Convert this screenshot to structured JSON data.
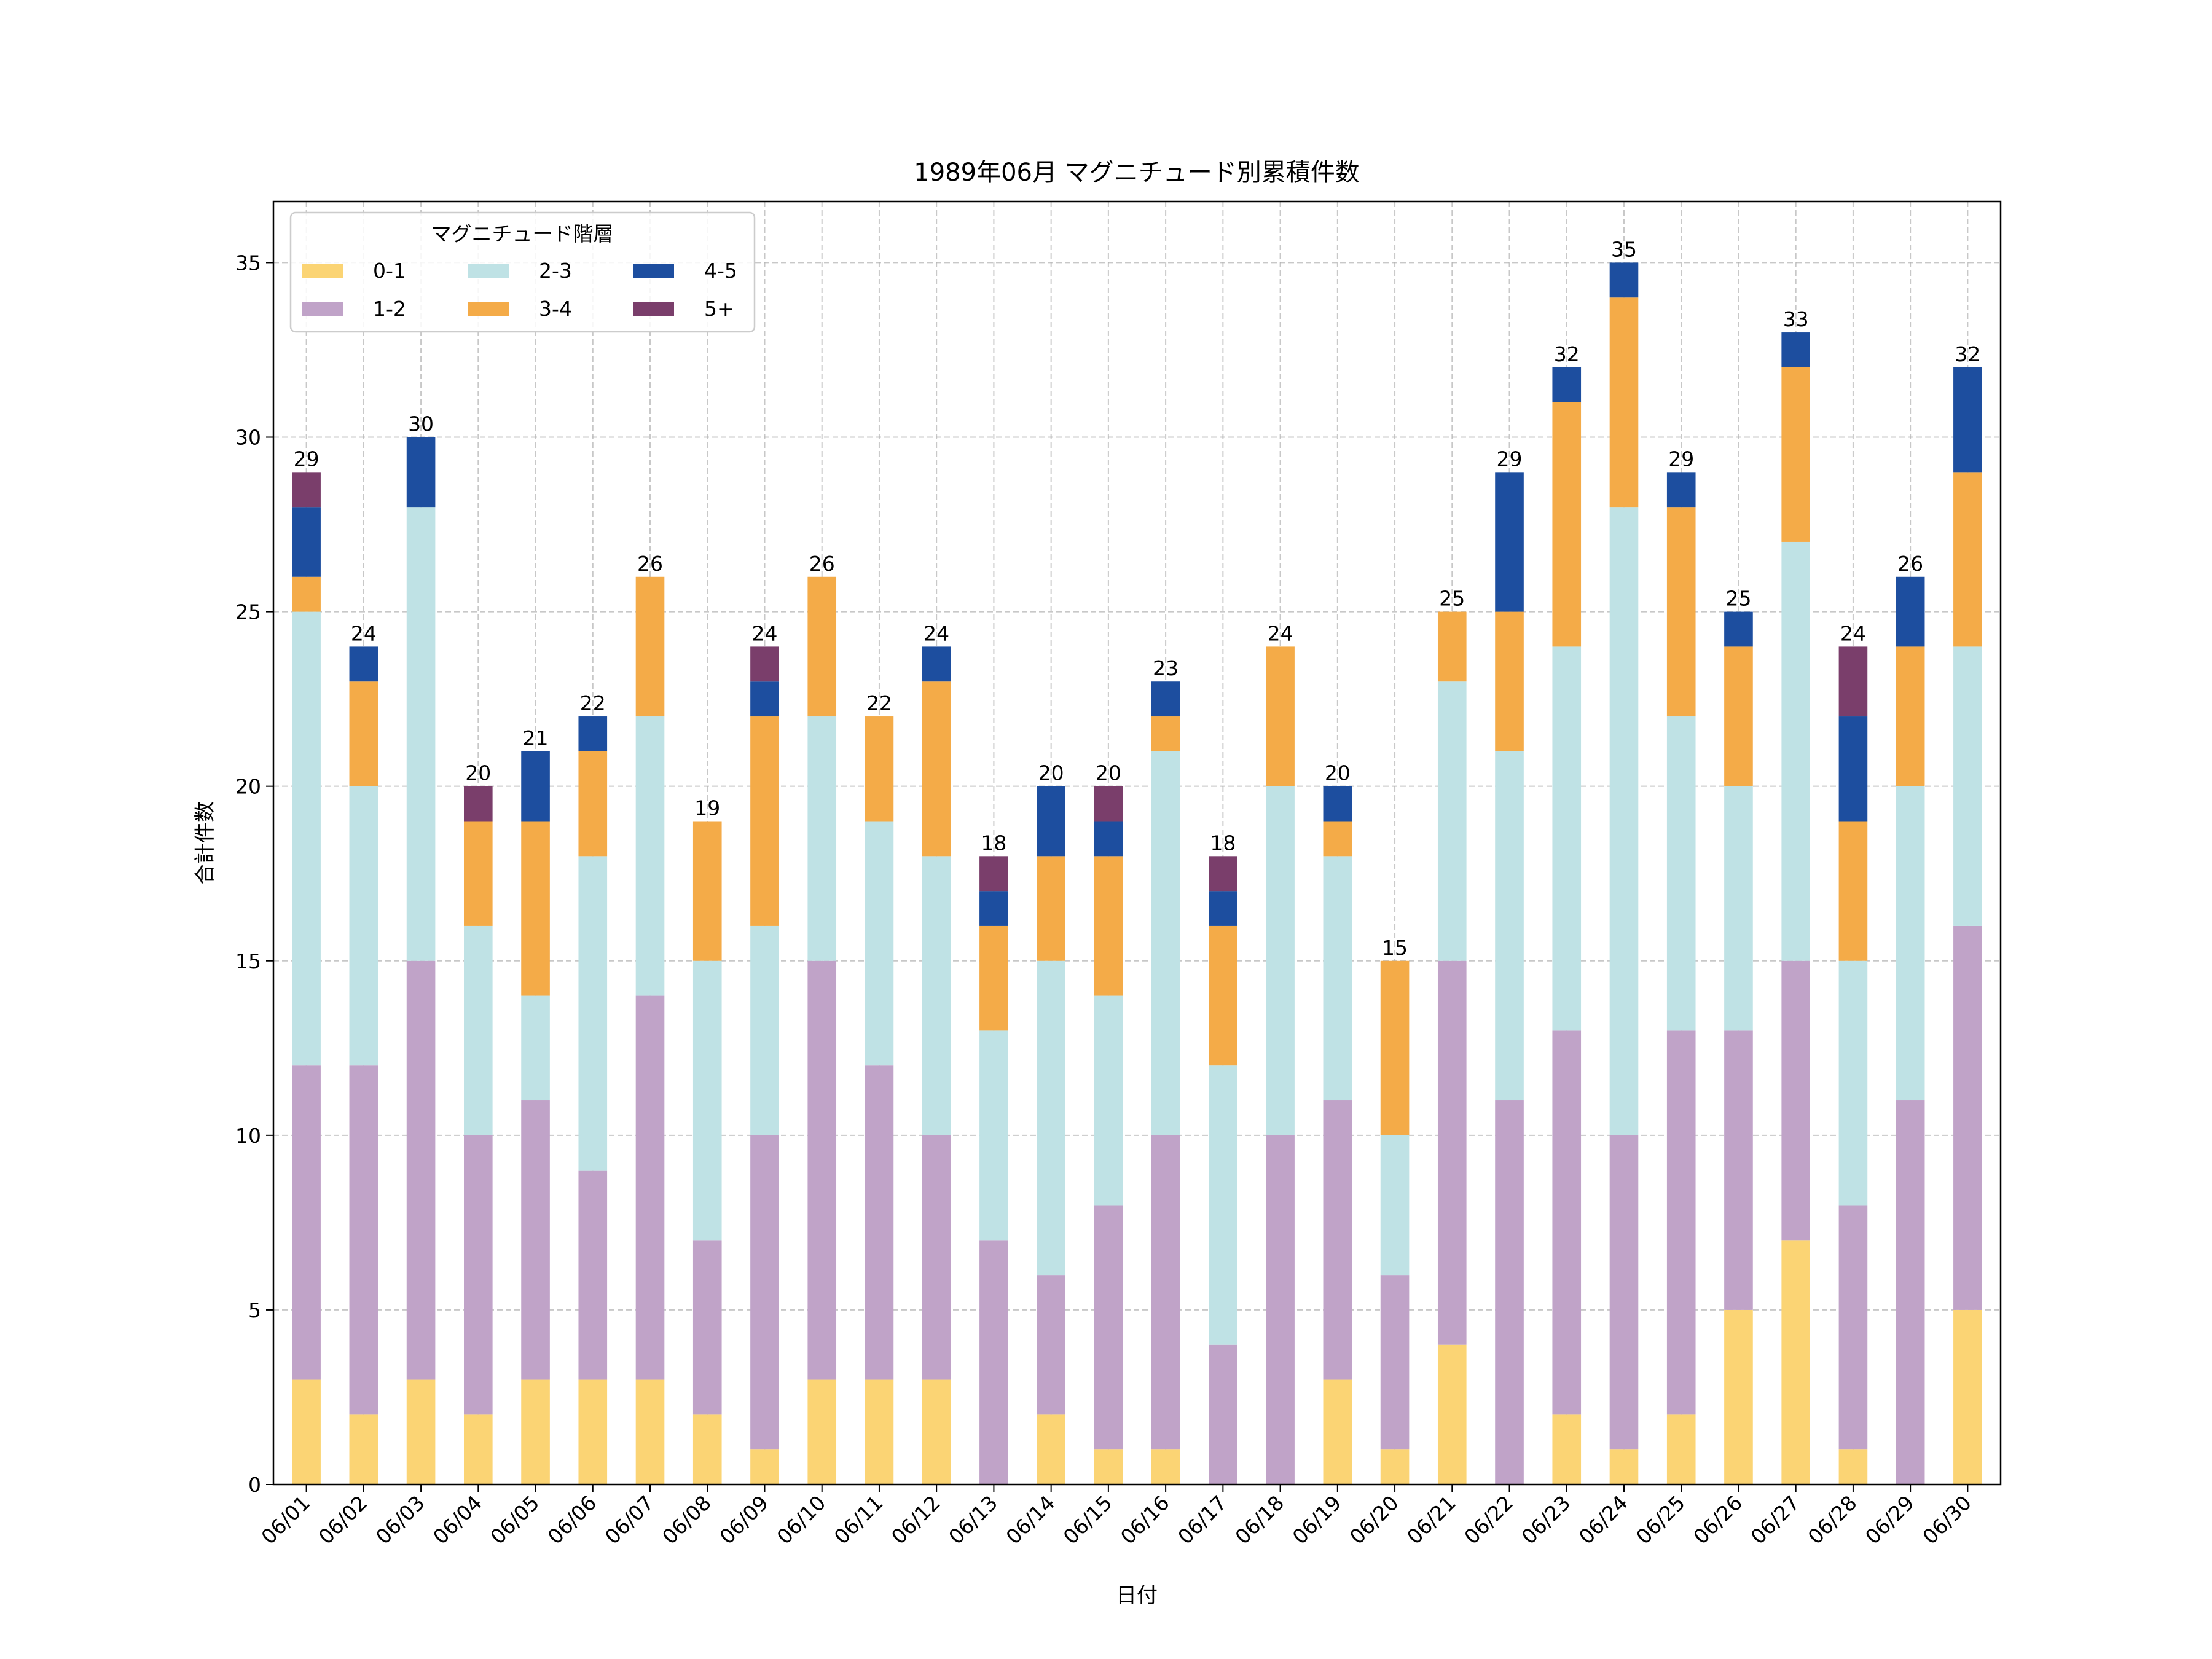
{
  "chart_data": {
    "type": "bar",
    "stacked": true,
    "title": "1989年06月 マグニチュード別累積件数",
    "xlabel": "日付",
    "ylabel": "合計件数",
    "ylim": [
      0,
      36.75
    ],
    "yticks": [
      0,
      5,
      10,
      15,
      20,
      25,
      30,
      35
    ],
    "grid": true,
    "legend": {
      "title": "マグニチュード階層",
      "placement": "top-left",
      "columns": 3
    },
    "categories": [
      "06/01",
      "06/02",
      "06/03",
      "06/04",
      "06/05",
      "06/06",
      "06/07",
      "06/08",
      "06/09",
      "06/10",
      "06/11",
      "06/12",
      "06/13",
      "06/14",
      "06/15",
      "06/16",
      "06/17",
      "06/18",
      "06/19",
      "06/20",
      "06/21",
      "06/22",
      "06/23",
      "06/24",
      "06/25",
      "06/26",
      "06/27",
      "06/28",
      "06/29",
      "06/30"
    ],
    "series": [
      {
        "name": "0-1",
        "color": "#FBD474",
        "values": [
          3,
          2,
          3,
          2,
          3,
          3,
          3,
          2,
          1,
          3,
          3,
          3,
          0,
          2,
          1,
          1,
          0,
          0,
          3,
          1,
          4,
          0,
          2,
          1,
          2,
          5,
          7,
          1,
          0,
          5
        ]
      },
      {
        "name": "1-2",
        "color": "#C0A3C8",
        "values": [
          9,
          10,
          12,
          8,
          8,
          6,
          11,
          5,
          9,
          12,
          9,
          7,
          7,
          4,
          7,
          9,
          4,
          10,
          8,
          5,
          11,
          11,
          11,
          9,
          11,
          8,
          8,
          7,
          11,
          11
        ]
      },
      {
        "name": "2-3",
        "color": "#BFE2E5",
        "values": [
          13,
          8,
          13,
          6,
          3,
          9,
          8,
          8,
          6,
          7,
          7,
          8,
          6,
          9,
          6,
          11,
          8,
          10,
          7,
          4,
          8,
          10,
          11,
          18,
          9,
          7,
          12,
          7,
          9,
          8
        ]
      },
      {
        "name": "3-4",
        "color": "#F4AB48",
        "values": [
          1,
          3,
          0,
          3,
          5,
          3,
          4,
          4,
          6,
          4,
          3,
          5,
          3,
          3,
          4,
          1,
          4,
          4,
          1,
          5,
          2,
          4,
          7,
          6,
          6,
          4,
          5,
          4,
          4,
          5
        ]
      },
      {
        "name": "4-5",
        "color": "#1D4E9F",
        "values": [
          2,
          1,
          2,
          0,
          2,
          1,
          0,
          0,
          1,
          0,
          0,
          1,
          1,
          2,
          1,
          1,
          1,
          0,
          1,
          0,
          0,
          4,
          1,
          1,
          1,
          1,
          1,
          3,
          2,
          3
        ]
      },
      {
        "name": "5+",
        "color": "#7A3E6B",
        "values": [
          1,
          0,
          0,
          1,
          0,
          0,
          0,
          0,
          1,
          0,
          0,
          0,
          1,
          0,
          1,
          0,
          1,
          0,
          0,
          0,
          0,
          0,
          0,
          0,
          0,
          0,
          0,
          2,
          0,
          0
        ]
      }
    ],
    "totals": [
      29,
      24,
      30,
      20,
      21,
      22,
      26,
      19,
      24,
      26,
      22,
      24,
      18,
      20,
      20,
      23,
      18,
      24,
      20,
      15,
      25,
      29,
      32,
      35,
      29,
      25,
      33,
      24,
      26,
      32
    ]
  }
}
